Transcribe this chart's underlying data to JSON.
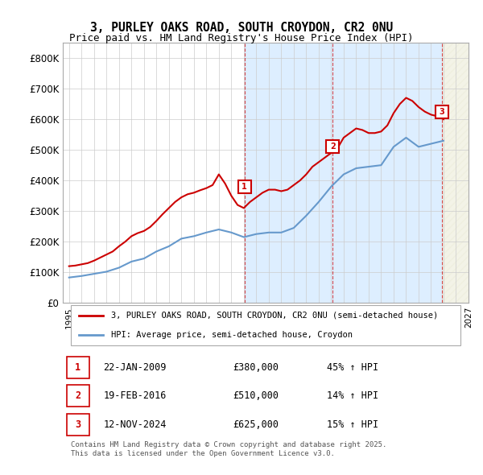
{
  "title": "3, PURLEY OAKS ROAD, SOUTH CROYDON, CR2 0NU",
  "subtitle": "Price paid vs. HM Land Registry's House Price Index (HPI)",
  "title_fontsize": 11,
  "subtitle_fontsize": 10,
  "hpi_years": [
    1995,
    1996,
    1997,
    1998,
    1999,
    2000,
    2001,
    2002,
    2003,
    2004,
    2005,
    2006,
    2007,
    2008,
    2009,
    2010,
    2011,
    2012,
    2013,
    2014,
    2015,
    2016,
    2017,
    2018,
    2019,
    2020,
    2021,
    2022,
    2023,
    2024,
    2025
  ],
  "hpi_values": [
    83000,
    88000,
    95000,
    102000,
    115000,
    135000,
    145000,
    168000,
    185000,
    210000,
    218000,
    230000,
    240000,
    230000,
    215000,
    225000,
    230000,
    230000,
    245000,
    285000,
    330000,
    380000,
    420000,
    440000,
    445000,
    450000,
    510000,
    540000,
    510000,
    520000,
    530000
  ],
  "red_years": [
    1995.0,
    1995.5,
    1996.0,
    1996.5,
    1997.0,
    1997.5,
    1998.0,
    1998.5,
    1999.0,
    1999.5,
    2000.0,
    2000.5,
    2001.0,
    2001.5,
    2002.0,
    2002.5,
    2003.0,
    2003.5,
    2004.0,
    2004.5,
    2005.0,
    2005.5,
    2006.0,
    2006.5,
    2007.0,
    2007.5,
    2008.0,
    2008.5,
    2009.0,
    2009.5,
    2010.0,
    2010.5,
    2011.0,
    2011.5,
    2012.0,
    2012.5,
    2013.0,
    2013.5,
    2014.0,
    2014.5,
    2015.0,
    2015.5,
    2016.0,
    2016.5,
    2017.0,
    2017.5,
    2018.0,
    2018.5,
    2019.0,
    2019.5,
    2020.0,
    2020.5,
    2021.0,
    2021.5,
    2022.0,
    2022.5,
    2023.0,
    2023.5,
    2024.0,
    2024.5,
    2025.0
  ],
  "red_values": [
    120000,
    122000,
    126000,
    130000,
    138000,
    148000,
    158000,
    168000,
    185000,
    200000,
    218000,
    228000,
    235000,
    248000,
    268000,
    290000,
    310000,
    330000,
    345000,
    355000,
    360000,
    368000,
    375000,
    385000,
    420000,
    390000,
    350000,
    320000,
    310000,
    330000,
    345000,
    360000,
    370000,
    370000,
    365000,
    370000,
    385000,
    400000,
    420000,
    445000,
    460000,
    475000,
    490000,
    505000,
    540000,
    555000,
    570000,
    565000,
    555000,
    555000,
    560000,
    580000,
    620000,
    650000,
    670000,
    660000,
    640000,
    625000,
    615000,
    610000,
    600000
  ],
  "sale1_x": 2009.06,
  "sale1_y": 380000,
  "sale2_x": 2016.12,
  "sale2_y": 510000,
  "sale3_x": 2024.87,
  "sale3_y": 625000,
  "sale1_label": "1",
  "sale2_label": "2",
  "sale3_label": "3",
  "shade1_x1": 2009.06,
  "shade1_x2": 2016.12,
  "shade2_x1": 2016.12,
  "shade2_x2": 2024.87,
  "shade3_x1": 2024.87,
  "shade3_x2": 2027.0,
  "xmin": 1994.5,
  "xmax": 2027.0,
  "ymin": 0,
  "ymax": 850000,
  "yticks": [
    0,
    100000,
    200000,
    300000,
    400000,
    500000,
    600000,
    700000,
    800000
  ],
  "ytick_labels": [
    "£0",
    "£100K",
    "£200K",
    "£300K",
    "£400K",
    "£500K",
    "£600K",
    "£700K",
    "£800K"
  ],
  "xticks": [
    1995,
    1996,
    1997,
    1998,
    1999,
    2000,
    2001,
    2002,
    2003,
    2004,
    2005,
    2006,
    2007,
    2008,
    2009,
    2010,
    2011,
    2012,
    2013,
    2014,
    2015,
    2016,
    2017,
    2018,
    2019,
    2020,
    2021,
    2022,
    2023,
    2024,
    2025,
    2026,
    2027
  ],
  "red_color": "#cc0000",
  "blue_color": "#6699cc",
  "shade1_color": "#ddeeff",
  "shade2_color": "#ddeeff",
  "shade3_color": "#eeeedd",
  "dashed_color": "#cc0000",
  "grid_color": "#cccccc",
  "bg_color": "#ffffff",
  "legend1_label": "3, PURLEY OAKS ROAD, SOUTH CROYDON, CR2 0NU (semi-detached house)",
  "legend2_label": "HPI: Average price, semi-detached house, Croydon",
  "table_entries": [
    {
      "num": "1",
      "date": "22-JAN-2009",
      "price": "£380,000",
      "change": "45% ↑ HPI"
    },
    {
      "num": "2",
      "date": "19-FEB-2016",
      "price": "£510,000",
      "change": "14% ↑ HPI"
    },
    {
      "num": "3",
      "date": "12-NOV-2024",
      "price": "£625,000",
      "change": "15% ↑ HPI"
    }
  ],
  "footer": "Contains HM Land Registry data © Crown copyright and database right 2025.\nThis data is licensed under the Open Government Licence v3.0."
}
